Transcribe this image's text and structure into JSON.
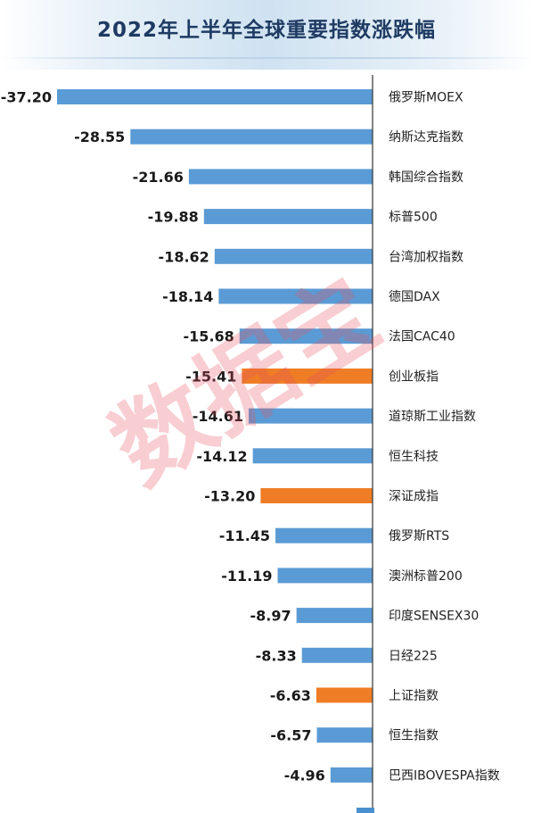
{
  "chart_data": {
    "type": "bar",
    "orientation": "horizontal",
    "title": "2022年上半年全球重要指数涨跌幅",
    "categories": [
      "俄罗斯MOEX",
      "纳斯达克指数",
      "韩国综合指数",
      "标普500",
      "台湾加权指数",
      "德国DAX",
      "法国CAC40",
      "创业板指",
      "道琼斯工业指数",
      "恒生科技",
      "深证成指",
      "俄罗斯RTS",
      "澳洲标普200",
      "印度SENSEX30",
      "日经225",
      "上证指数",
      "恒生指数",
      "巴西IBOVESPA指数"
    ],
    "values": [
      -37.2,
      -28.55,
      -21.66,
      -19.88,
      -18.62,
      -18.14,
      -15.68,
      -15.41,
      -14.61,
      -14.12,
      -13.2,
      -11.45,
      -11.19,
      -8.97,
      -8.33,
      -6.63,
      -6.57,
      -4.96
    ],
    "value_labels": [
      "-37.20",
      "-28.55",
      "-21.66",
      "-19.88",
      "-18.62",
      "-18.14",
      "-15.68",
      "-15.41",
      "-14.61",
      "-14.12",
      "-13.20",
      "-11.45",
      "-11.19",
      "-8.97",
      "-8.33",
      "-6.63",
      "-6.57",
      "-4.96"
    ],
    "highlight": [
      false,
      false,
      false,
      false,
      false,
      false,
      false,
      true,
      false,
      false,
      true,
      false,
      false,
      false,
      false,
      true,
      false,
      false
    ],
    "colors": {
      "default": "#5b9bd5",
      "highlight": "#ee7d26",
      "label": "#1a1a1a",
      "axis": "#333333"
    },
    "xlim": [
      -37.2,
      0
    ],
    "grid": false,
    "legend": "none"
  },
  "watermark": "数据宝"
}
